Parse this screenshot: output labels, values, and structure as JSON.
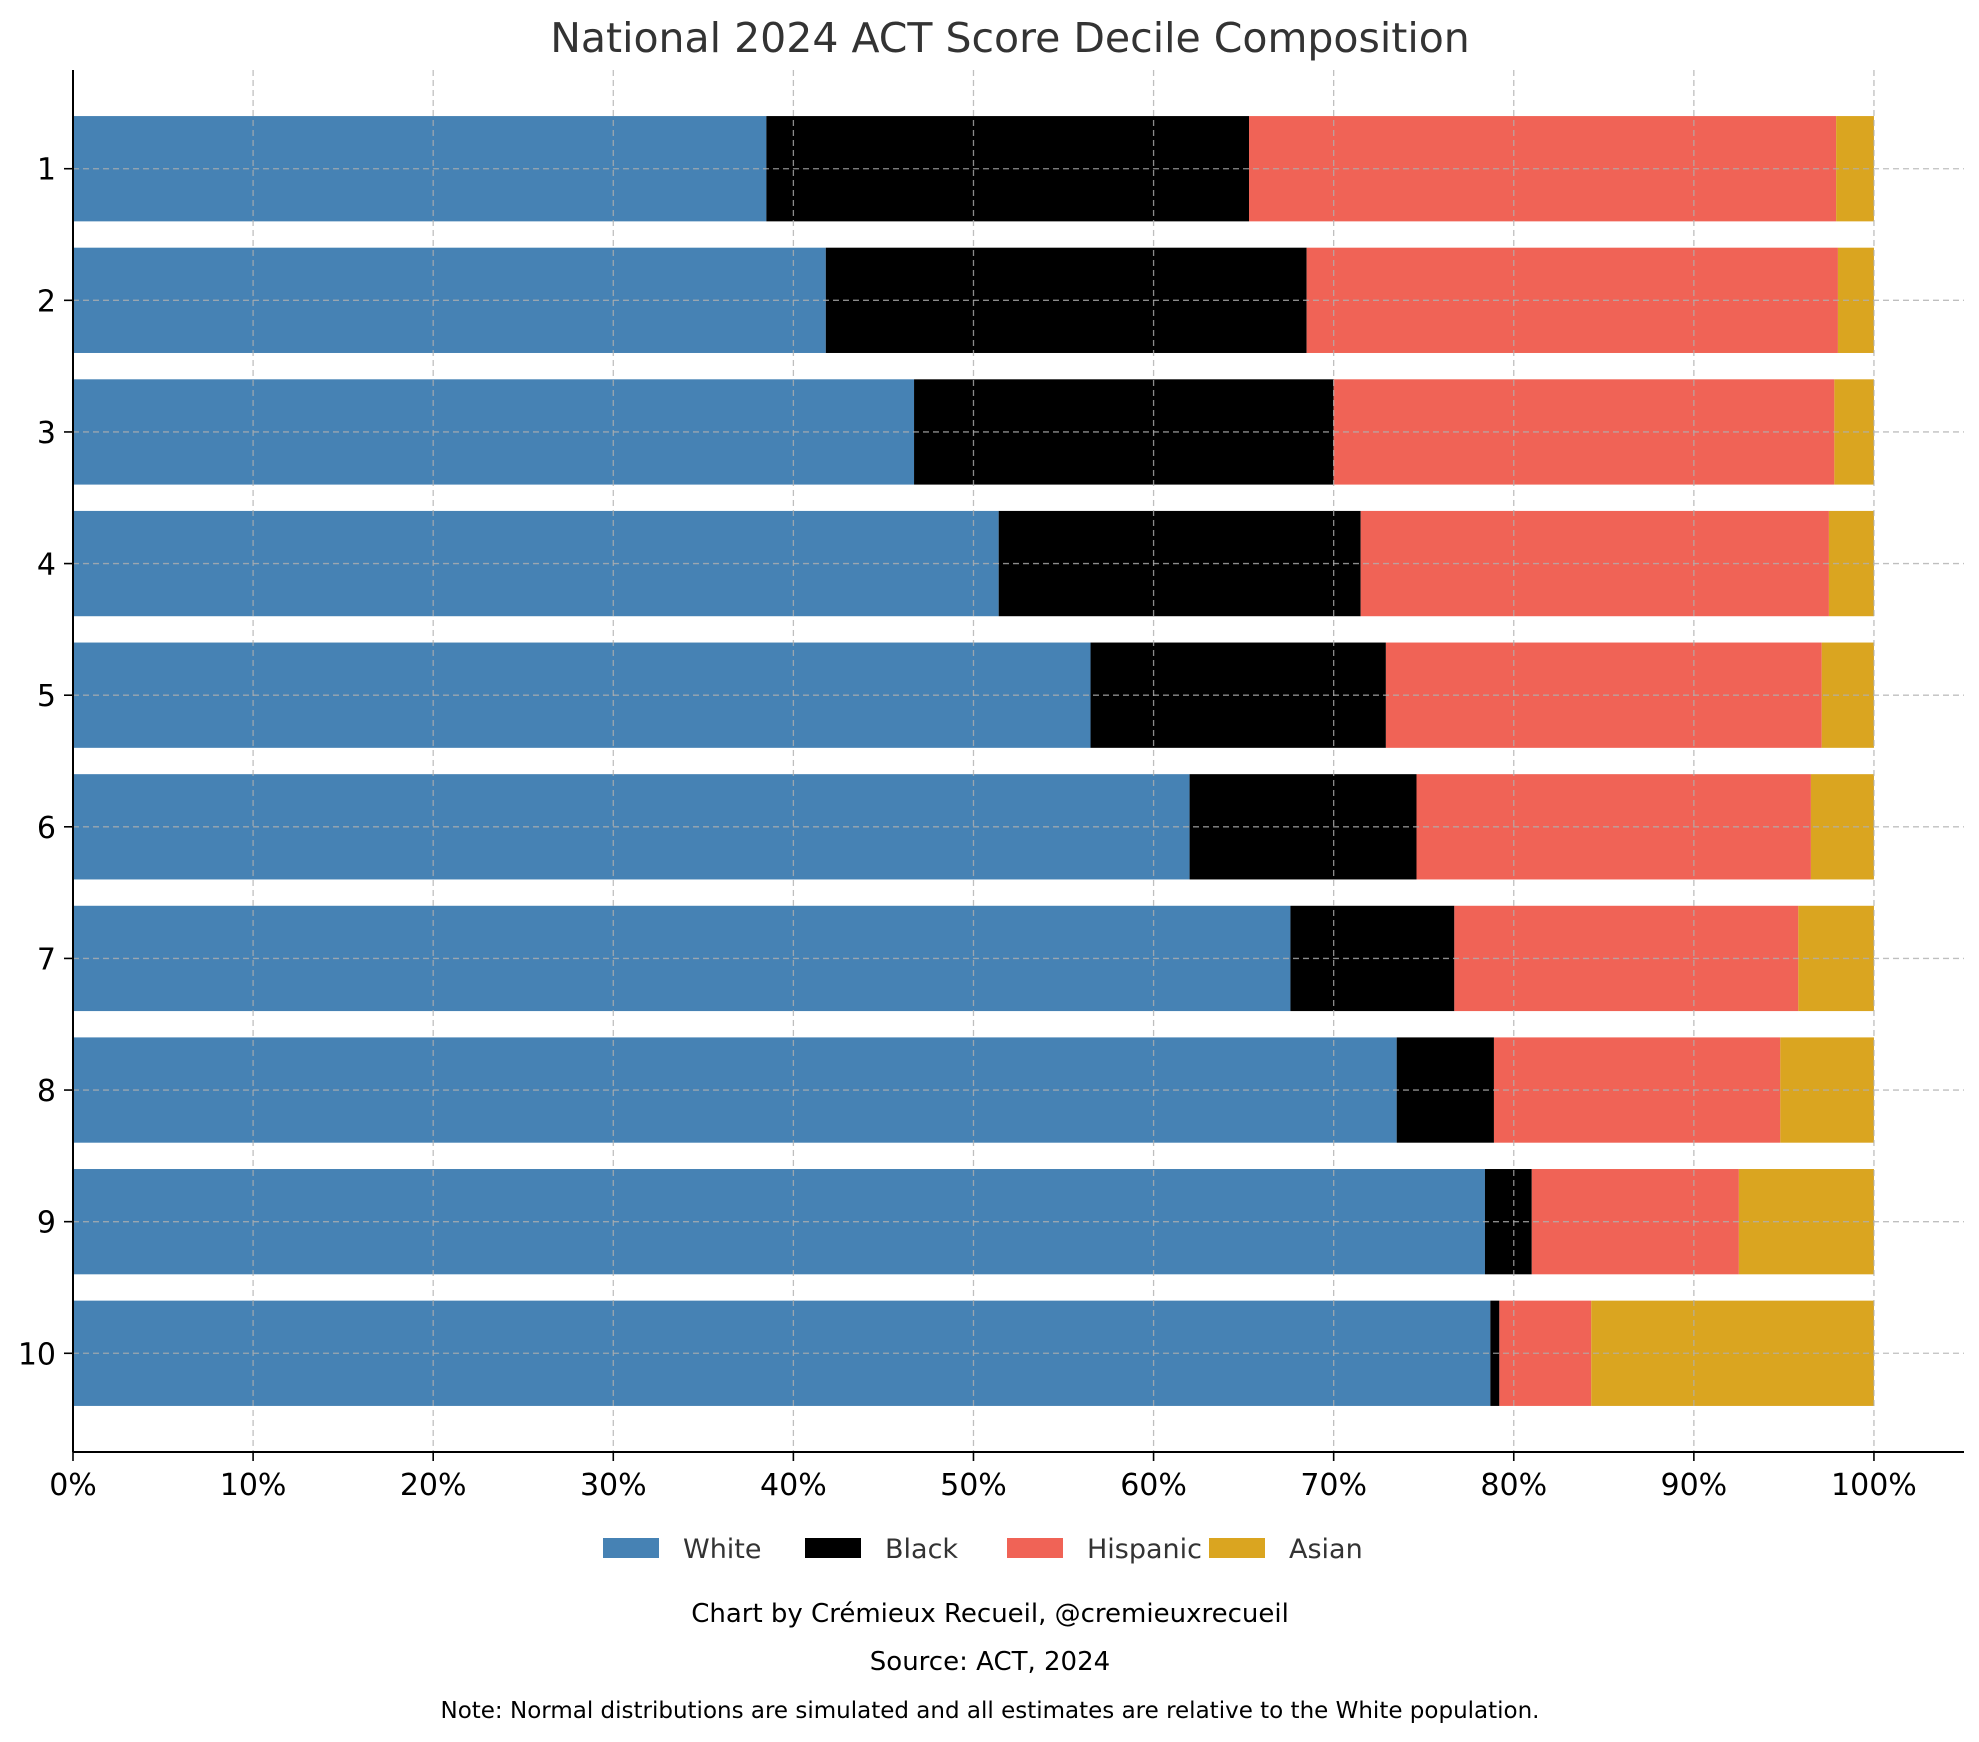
{
  "chart_data": {
    "type": "bar",
    "orientation": "horizontal",
    "stacked": true,
    "title": "National 2024 ACT Score Decile Composition",
    "xlabel": "",
    "ylabel": "",
    "xlim": [
      0,
      105
    ],
    "x_ticks": [
      "0%",
      "10%",
      "20%",
      "30%",
      "40%",
      "50%",
      "60%",
      "70%",
      "80%",
      "90%",
      "100%"
    ],
    "x_tick_values": [
      0,
      10,
      20,
      30,
      40,
      50,
      60,
      70,
      80,
      90,
      100
    ],
    "categories": [
      "1",
      "2",
      "3",
      "4",
      "5",
      "6",
      "7",
      "8",
      "9",
      "10"
    ],
    "series": [
      {
        "name": "White",
        "color": "#4682B4",
        "values": [
          38.5,
          41.8,
          46.7,
          51.4,
          56.5,
          62.0,
          67.6,
          73.5,
          78.4,
          78.7
        ]
      },
      {
        "name": "Black",
        "color": "#000000",
        "values": [
          26.8,
          26.7,
          23.3,
          20.1,
          16.4,
          12.6,
          9.1,
          5.4,
          2.6,
          0.5
        ]
      },
      {
        "name": "Hispanic",
        "color": "#F06356",
        "values": [
          32.6,
          29.5,
          27.8,
          26.0,
          24.2,
          21.9,
          19.1,
          15.9,
          11.5,
          5.1
        ]
      },
      {
        "name": "Asian",
        "color": "#DAA520",
        "values": [
          2.1,
          2.0,
          2.2,
          2.5,
          2.9,
          3.5,
          4.2,
          5.2,
          7.5,
          15.7
        ]
      }
    ],
    "grid": true,
    "legend_position": "bottom"
  },
  "footer": {
    "credit": "Chart by Crémieux Recueil, @cremieuxrecueil",
    "source": "Source: ACT, 2024",
    "note": "Note: Normal distributions are simulated and all estimates are relative to the White population."
  }
}
